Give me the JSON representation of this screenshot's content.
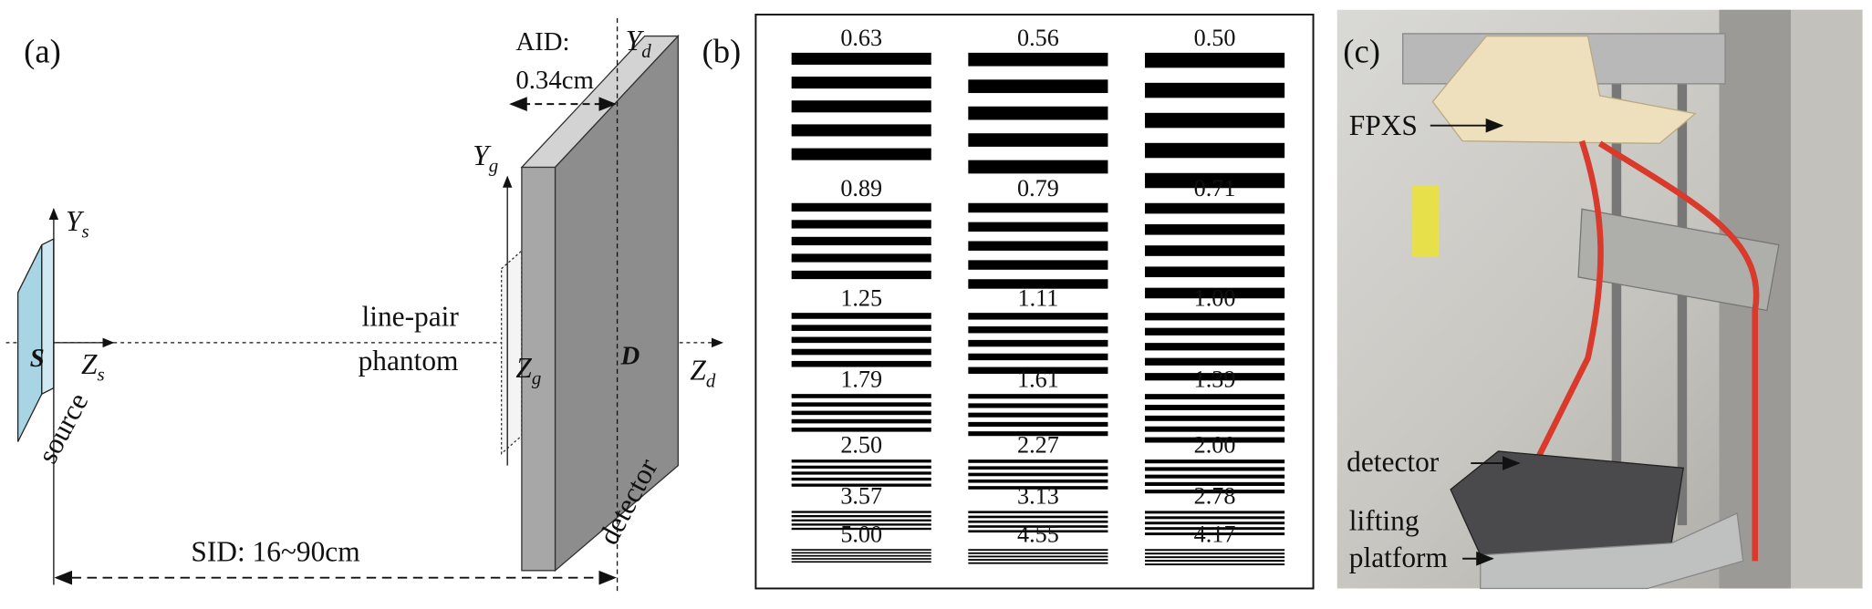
{
  "panel_a": {
    "label": "(a)",
    "aid_title": "AID:",
    "aid_value": "0.34cm",
    "axes": [
      {
        "main": "Y",
        "sub": "s"
      },
      {
        "main": "Z",
        "sub": "s"
      },
      {
        "main": "Y",
        "sub": "g"
      },
      {
        "main": "Z",
        "sub": "g"
      },
      {
        "main": "Y",
        "sub": "d"
      },
      {
        "main": "Z",
        "sub": "d"
      }
    ],
    "source_point": "S",
    "detector_point": "D",
    "phantom_label": [
      "line-pair",
      "phantom"
    ],
    "source_label": "source",
    "detector_label": "detector",
    "sid": "SID: 16~90cm"
  },
  "panel_b": {
    "label": "(b)",
    "rows": [
      [
        "0.63",
        "0.56",
        "0.50"
      ],
      [
        "0.89",
        "0.79",
        "0.71"
      ],
      [
        "1.25",
        "1.11",
        "1.00"
      ],
      [
        "1.79",
        "1.61",
        "1.39"
      ],
      [
        "2.50",
        "2.27",
        "2.00"
      ],
      [
        "3.57",
        "3.13",
        "2.78"
      ],
      [
        "5.00",
        "4.55",
        "4.17"
      ]
    ]
  },
  "panel_c": {
    "label": "(c)",
    "fpxs": "FPXS",
    "detector": "detector",
    "platform": [
      "lifting",
      "platform"
    ]
  }
}
